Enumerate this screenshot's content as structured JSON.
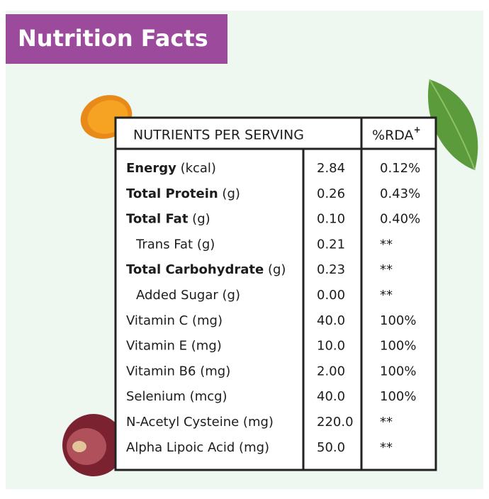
{
  "header": {
    "title": "Nutrition Facts"
  },
  "table": {
    "columns": {
      "nutrients": "NUTRIENTS PER SERVING",
      "rda": "%RDA",
      "rda_mark": "+"
    },
    "rows": [
      {
        "label": "Energy",
        "unit": "(kcal)",
        "bold": true,
        "indent": false,
        "amount": "2.84",
        "rda": "0.12%"
      },
      {
        "label": "Total Protein",
        "unit": "(g)",
        "bold": true,
        "indent": false,
        "amount": "0.26",
        "rda": "0.43%"
      },
      {
        "label": "Total Fat",
        "unit": "(g)",
        "bold": true,
        "indent": false,
        "amount": "0.10",
        "rda": "0.40%"
      },
      {
        "label": "Trans Fat",
        "unit": "(g)",
        "bold": false,
        "indent": true,
        "amount": "0.21",
        "rda": "**"
      },
      {
        "label": "Total Carbohydrate",
        "unit": "(g)",
        "bold": true,
        "indent": false,
        "amount": "0.23",
        "rda": "**"
      },
      {
        "label": "Added Sugar",
        "unit": "(g)",
        "bold": false,
        "indent": true,
        "amount": "0.00",
        "rda": "**"
      },
      {
        "label": "Vitamin C",
        "unit": "(mg)",
        "bold": false,
        "indent": false,
        "amount": "40.0",
        "rda": "100%"
      },
      {
        "label": "Vitamin E",
        "unit": "(mg)",
        "bold": false,
        "indent": false,
        "amount": "10.0",
        "rda": "100%"
      },
      {
        "label": "Vitamin B6",
        "unit": "(mg)",
        "bold": false,
        "indent": false,
        "amount": "2.00",
        "rda": "100%"
      },
      {
        "label": "Selenium",
        "unit": "(mcg)",
        "bold": false,
        "indent": false,
        "amount": "40.0",
        "rda": "100%"
      },
      {
        "label": "N-Acetyl Cysteine",
        "unit": "(mg)",
        "bold": false,
        "indent": false,
        "amount": "220.0",
        "rda": "**"
      },
      {
        "label": "Alpha Lipoic Acid",
        "unit": "(mg)",
        "bold": false,
        "indent": false,
        "amount": "50.0",
        "rda": "**"
      }
    ]
  }
}
